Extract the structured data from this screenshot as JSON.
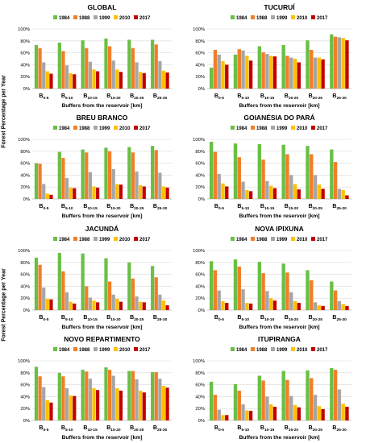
{
  "figure": {
    "y_axis_label": "Forest Percentage per Year",
    "x_axis_label": "Buffers from the reservoir [km]"
  },
  "legend": [
    {
      "year": "1984",
      "color": "#6abf45"
    },
    {
      "year": "1988",
      "color": "#f07f2a"
    },
    {
      "year": "1999",
      "color": "#a6a6a6"
    },
    {
      "year": "2010",
      "color": "#ffc000"
    },
    {
      "year": "2017",
      "color": "#c00000"
    }
  ],
  "chart_data": [
    {
      "type": "bar",
      "title": "GLOBAL",
      "categories": [
        "0-5",
        "5-10",
        "10-15",
        "15-20",
        "20-25",
        "25-30"
      ],
      "ylim": [
        0,
        100
      ],
      "yticks": [
        "0%",
        "20%",
        "40%",
        "60%",
        "80%",
        "100%"
      ],
      "grid": true,
      "series": [
        {
          "name": "1984",
          "values": [
            73,
            77,
            81,
            84,
            82,
            82
          ]
        },
        {
          "name": "1988",
          "values": [
            68,
            63,
            68,
            71,
            68,
            74
          ]
        },
        {
          "name": "1999",
          "values": [
            44,
            39,
            45,
            47,
            44,
            46
          ]
        },
        {
          "name": "2010",
          "values": [
            29,
            26,
            32,
            32,
            28,
            30
          ]
        },
        {
          "name": "2017",
          "values": [
            25,
            24,
            29,
            28,
            26,
            27
          ]
        }
      ]
    },
    {
      "type": "bar",
      "title": "TUCURUÍ",
      "categories": [
        "0-5",
        "5-10",
        "10-15",
        "15-20",
        "20-25",
        "25-30"
      ],
      "ylim": [
        0,
        100
      ],
      "yticks": [
        "0%",
        "20%",
        "40%",
        "60%",
        "80%",
        "100%"
      ],
      "grid": true,
      "series": [
        {
          "name": "1984",
          "values": [
            35,
            57,
            71,
            73,
            81,
            91
          ]
        },
        {
          "name": "1988",
          "values": [
            65,
            66,
            61,
            55,
            65,
            87
          ]
        },
        {
          "name": "1999",
          "values": [
            57,
            64,
            58,
            52,
            52,
            86
          ]
        },
        {
          "name": "2010",
          "values": [
            46,
            55,
            55,
            50,
            52,
            85
          ]
        },
        {
          "name": "2017",
          "values": [
            40,
            47,
            54,
            44,
            49,
            81
          ]
        }
      ]
    },
    {
      "type": "bar",
      "title": "BREU BRANCO",
      "categories": [
        "0-5",
        "5-10",
        "10-15",
        "15-20",
        "20-25",
        "25-30"
      ],
      "ylim": [
        0,
        100
      ],
      "yticks": [
        "0%",
        "20%",
        "40%",
        "60%",
        "80%",
        "100%"
      ],
      "grid": true,
      "series": [
        {
          "name": "1984",
          "values": [
            60,
            79,
            83,
            86,
            87,
            89
          ]
        },
        {
          "name": "1988",
          "values": [
            59,
            69,
            78,
            80,
            78,
            82
          ]
        },
        {
          "name": "1999",
          "values": [
            25,
            35,
            45,
            50,
            46,
            44
          ]
        },
        {
          "name": "2010",
          "values": [
            9,
            19,
            21,
            25,
            23,
            21
          ]
        },
        {
          "name": "2017",
          "values": [
            7,
            18,
            19,
            24,
            21,
            19
          ]
        }
      ]
    },
    {
      "type": "bar",
      "title": "GOIANÉSIA DO PARÁ",
      "categories": [
        "0-5",
        "5-10",
        "10-15",
        "15-20",
        "20-25",
        "25-30"
      ],
      "ylim": [
        0,
        100
      ],
      "yticks": [
        "0%",
        "20%",
        "40%",
        "60%",
        "80%",
        "100%"
      ],
      "grid": true,
      "series": [
        {
          "name": "1984",
          "values": [
            96,
            93,
            92,
            91,
            89,
            83
          ]
        },
        {
          "name": "1988",
          "values": [
            79,
            70,
            66,
            75,
            75,
            62
          ]
        },
        {
          "name": "1999",
          "values": [
            42,
            29,
            30,
            40,
            40,
            17
          ]
        },
        {
          "name": "2010",
          "values": [
            26,
            15,
            22,
            25,
            24,
            15
          ]
        },
        {
          "name": "2017",
          "values": [
            21,
            13,
            18,
            16,
            17,
            6
          ]
        }
      ]
    },
    {
      "type": "bar",
      "title": "JACUNDÁ",
      "categories": [
        "0-5",
        "5-10",
        "10-15",
        "15-20",
        "20-25",
        "25-30"
      ],
      "ylim": [
        0,
        100
      ],
      "yticks": [
        "0%",
        "20%",
        "40%",
        "60%",
        "80%",
        "100%"
      ],
      "grid": true,
      "series": [
        {
          "name": "1984",
          "values": [
            88,
            96,
            95,
            87,
            80,
            74
          ]
        },
        {
          "name": "1988",
          "values": [
            76,
            65,
            40,
            48,
            53,
            55
          ]
        },
        {
          "name": "1999",
          "values": [
            38,
            30,
            21,
            26,
            23,
            26
          ]
        },
        {
          "name": "2010",
          "values": [
            19,
            14,
            16,
            19,
            14,
            16
          ]
        },
        {
          "name": "2017",
          "values": [
            18,
            11,
            13,
            14,
            13,
            8
          ]
        }
      ]
    },
    {
      "type": "bar",
      "title": "NOVA IPIXUNA",
      "categories": [
        "0-5",
        "5-10",
        "10-15",
        "15-20",
        "20-25",
        "25-30"
      ],
      "ylim": [
        0,
        100
      ],
      "yticks": [
        "0%",
        "20%",
        "40%",
        "60%",
        "80%",
        "100%"
      ],
      "grid": true,
      "series": [
        {
          "name": "1984",
          "values": [
            82,
            85,
            81,
            78,
            67,
            48
          ]
        },
        {
          "name": "1988",
          "values": [
            67,
            73,
            62,
            63,
            50,
            33
          ]
        },
        {
          "name": "1999",
          "values": [
            33,
            35,
            32,
            30,
            13,
            15
          ]
        },
        {
          "name": "2010",
          "values": [
            15,
            12,
            20,
            15,
            8,
            10
          ]
        },
        {
          "name": "2017",
          "values": [
            12,
            11,
            16,
            12,
            7,
            7
          ]
        }
      ]
    },
    {
      "type": "bar",
      "title": "NOVO REPARTIMENTO",
      "categories": [
        "0-5",
        "5-10",
        "10-15",
        "15-20",
        "20-25",
        "25-30"
      ],
      "ylim": [
        0,
        100
      ],
      "yticks": [
        "0%",
        "20%",
        "40%",
        "60%",
        "80%",
        "100%"
      ],
      "grid": true,
      "series": [
        {
          "name": "1984",
          "values": [
            90,
            80,
            85,
            89,
            83,
            81
          ]
        },
        {
          "name": "1988",
          "values": [
            74,
            74,
            82,
            85,
            83,
            81
          ]
        },
        {
          "name": "1999",
          "values": [
            56,
            54,
            70,
            75,
            69,
            70
          ]
        },
        {
          "name": "2010",
          "values": [
            34,
            42,
            54,
            54,
            50,
            58
          ]
        },
        {
          "name": "2017",
          "values": [
            30,
            41,
            51,
            50,
            47,
            55
          ]
        }
      ]
    },
    {
      "type": "bar",
      "title": "ITUPIRANGA",
      "categories": [
        "0-5",
        "5-10",
        "10-15",
        "15-20",
        "20-25",
        "25-30"
      ],
      "ylim": [
        0,
        100
      ],
      "yticks": [
        "0%",
        "20%",
        "40%",
        "60%",
        "80%",
        "100%"
      ],
      "grid": true,
      "series": [
        {
          "name": "1984",
          "values": [
            65,
            61,
            75,
            83,
            84,
            88
          ]
        },
        {
          "name": "1988",
          "values": [
            43,
            50,
            67,
            68,
            71,
            85
          ]
        },
        {
          "name": "1999",
          "values": [
            18,
            27,
            40,
            41,
            43,
            52
          ]
        },
        {
          "name": "2010",
          "values": [
            9,
            17,
            27,
            26,
            24,
            28
          ]
        },
        {
          "name": "2017",
          "values": [
            9,
            16,
            23,
            22,
            19,
            23
          ]
        }
      ]
    }
  ]
}
